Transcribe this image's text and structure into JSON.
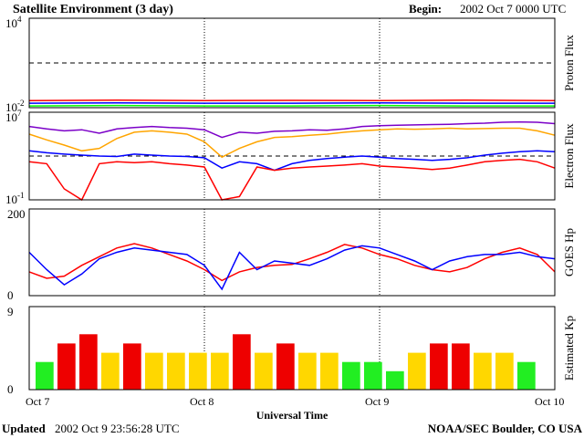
{
  "header": {
    "title": "Satellite Environment (3 day)",
    "begin_label": "Begin:",
    "begin_value": "2002 Oct 7 0000 UTC"
  },
  "footer": {
    "updated_label": "Updated",
    "updated_value": "2002 Oct  9 23:56:28 UTC",
    "credit": "NOAA/SEC Boulder, CO USA"
  },
  "x_axis": {
    "label": "Universal Time",
    "ticks": [
      "Oct 7",
      "Oct 8",
      "Oct 9",
      "Oct 10"
    ],
    "range_days": [
      0,
      3
    ]
  },
  "colors": {
    "red": "#ff0000",
    "blue": "#0000ff",
    "green": "#00ff00",
    "orange": "#ffa500",
    "purple": "#7b00c8",
    "kp_quiet": "#22ee22",
    "kp_active": "#ffd700",
    "kp_storm": "#ee0000"
  },
  "chart_data": [
    {
      "type": "line",
      "panel": "proton",
      "ylabel": "Proton Flux",
      "yscale": "log",
      "ylim": [
        0.01,
        10000
      ],
      "yticks": [
        {
          "base": "10",
          "exp": "4"
        },
        {
          "base": "10",
          "exp": "-2"
        }
      ],
      "threshold": 10,
      "grid": false,
      "series": [
        {
          "color": "red",
          "x": [
            0,
            0.5,
            1,
            1.5,
            2,
            2.5,
            3
          ],
          "values": [
            0.03,
            0.032,
            0.03,
            0.031,
            0.03,
            0.032,
            0.03
          ]
        },
        {
          "color": "blue",
          "x": [
            0,
            0.5,
            1,
            1.5,
            2,
            2.5,
            3
          ],
          "values": [
            0.02,
            0.021,
            0.02,
            0.02,
            0.021,
            0.02,
            0.02
          ]
        },
        {
          "color": "green",
          "x": [
            0,
            0.5,
            1,
            1.5,
            2,
            2.5,
            3
          ],
          "values": [
            0.013,
            0.014,
            0.013,
            0.013,
            0.014,
            0.013,
            0.013
          ]
        }
      ]
    },
    {
      "type": "line",
      "panel": "electron",
      "ylabel": "Electron Flux",
      "yscale": "log",
      "ylim": [
        0.1,
        10000000
      ],
      "yticks": [
        {
          "base": "10",
          "exp": "7"
        },
        {
          "base": "10",
          "exp": "-1"
        }
      ],
      "threshold": 1000,
      "grid": false,
      "series": [
        {
          "color": "purple",
          "x": [
            0,
            0.1,
            0.2,
            0.3,
            0.4,
            0.5,
            0.6,
            0.7,
            0.8,
            0.9,
            1.0,
            1.1,
            1.2,
            1.3,
            1.4,
            1.5,
            1.6,
            1.7,
            1.8,
            1.9,
            2.0,
            2.1,
            2.2,
            2.3,
            2.4,
            2.5,
            2.6,
            2.7,
            2.8,
            2.9,
            3.0
          ],
          "values": [
            500000,
            300000,
            200000,
            250000,
            120000,
            300000,
            400000,
            500000,
            400000,
            350000,
            250000,
            50000,
            150000,
            120000,
            180000,
            200000,
            250000,
            230000,
            300000,
            500000,
            600000,
            650000,
            700000,
            750000,
            800000,
            900000,
            1000000,
            1200000,
            1300000,
            1200000,
            900000
          ]
        },
        {
          "color": "orange",
          "x": [
            0,
            0.1,
            0.2,
            0.3,
            0.4,
            0.5,
            0.6,
            0.7,
            0.8,
            0.9,
            1.0,
            1.1,
            1.2,
            1.3,
            1.4,
            1.5,
            1.6,
            1.7,
            1.8,
            1.9,
            2.0,
            2.1,
            2.2,
            2.3,
            2.4,
            2.5,
            2.6,
            2.7,
            2.8,
            2.9,
            3.0
          ],
          "values": [
            100000,
            30000,
            10000,
            3000,
            5000,
            40000,
            150000,
            200000,
            150000,
            100000,
            20000,
            800,
            5000,
            20000,
            50000,
            60000,
            80000,
            100000,
            150000,
            200000,
            250000,
            300000,
            280000,
            300000,
            350000,
            300000,
            320000,
            350000,
            350000,
            200000,
            80000
          ]
        },
        {
          "color": "blue",
          "x": [
            0,
            0.1,
            0.2,
            0.3,
            0.4,
            0.5,
            0.6,
            0.7,
            0.8,
            0.9,
            1.0,
            1.1,
            1.2,
            1.3,
            1.4,
            1.5,
            1.6,
            1.7,
            1.8,
            1.9,
            2.0,
            2.1,
            2.2,
            2.3,
            2.4,
            2.5,
            2.6,
            2.7,
            2.8,
            2.9,
            3.0
          ],
          "values": [
            3000,
            2000,
            1500,
            1200,
            1000,
            900,
            1500,
            1200,
            1000,
            900,
            700,
            80,
            300,
            200,
            50,
            200,
            400,
            600,
            800,
            1000,
            800,
            600,
            500,
            400,
            500,
            700,
            1200,
            1800,
            2500,
            3000,
            2500
          ]
        },
        {
          "color": "red",
          "x": [
            0,
            0.1,
            0.2,
            0.3,
            0.4,
            0.5,
            0.6,
            0.7,
            0.8,
            0.9,
            1.0,
            1.1,
            1.2,
            1.3,
            1.4,
            1.5,
            1.6,
            1.7,
            1.8,
            1.9,
            2.0,
            2.1,
            2.2,
            2.3,
            2.4,
            2.5,
            2.6,
            2.7,
            2.8,
            2.9,
            3.0
          ],
          "values": [
            300,
            200,
            1,
            0.1,
            200,
            300,
            250,
            300,
            200,
            150,
            100,
            0.1,
            0.2,
            100,
            50,
            80,
            100,
            120,
            150,
            200,
            120,
            100,
            80,
            60,
            80,
            150,
            300,
            400,
            500,
            300,
            80
          ]
        }
      ]
    },
    {
      "type": "line",
      "panel": "hp",
      "ylabel": "GOES Hp",
      "ylim": [
        0,
        200
      ],
      "yticks": [
        "200",
        "0"
      ],
      "grid": false,
      "series": [
        {
          "color": "red",
          "x": [
            0,
            0.1,
            0.2,
            0.3,
            0.4,
            0.5,
            0.6,
            0.7,
            0.8,
            0.9,
            1.0,
            1.1,
            1.2,
            1.3,
            1.4,
            1.5,
            1.6,
            1.7,
            1.8,
            1.9,
            2.0,
            2.1,
            2.2,
            2.3,
            2.4,
            2.5,
            2.6,
            2.7,
            2.8,
            2.9,
            3.0
          ],
          "values": [
            55,
            40,
            45,
            70,
            90,
            110,
            120,
            110,
            95,
            80,
            60,
            35,
            55,
            65,
            70,
            72,
            85,
            100,
            118,
            110,
            95,
            85,
            70,
            60,
            55,
            65,
            85,
            100,
            110,
            95,
            55
          ]
        },
        {
          "color": "blue",
          "x": [
            0,
            0.1,
            0.2,
            0.3,
            0.4,
            0.5,
            0.6,
            0.7,
            0.8,
            0.9,
            1.0,
            1.1,
            1.2,
            1.3,
            1.4,
            1.5,
            1.6,
            1.7,
            1.8,
            1.9,
            2.0,
            2.1,
            2.2,
            2.3,
            2.4,
            2.5,
            2.6,
            2.7,
            2.8,
            2.9,
            3.0
          ],
          "values": [
            100,
            60,
            25,
            50,
            85,
            100,
            110,
            105,
            100,
            95,
            70,
            15,
            100,
            60,
            80,
            75,
            70,
            85,
            105,
            115,
            110,
            95,
            80,
            60,
            80,
            90,
            95,
            95,
            100,
            90,
            85
          ]
        }
      ]
    },
    {
      "type": "bar",
      "panel": "kp",
      "ylabel": "Estimated Kp",
      "ylim": [
        0,
        9
      ],
      "yticks": [
        "9",
        "0"
      ],
      "grid": false,
      "values": [
        3,
        5,
        6,
        4,
        5,
        4,
        4,
        4,
        4,
        6,
        4,
        5,
        4,
        4,
        3,
        3,
        2,
        4,
        5,
        5,
        4,
        4,
        3
      ],
      "levels": [
        "green",
        "red",
        "red",
        "yellow",
        "red",
        "yellow",
        "yellow",
        "yellow",
        "yellow",
        "red",
        "yellow",
        "red",
        "yellow",
        "yellow",
        "green",
        "green",
        "green",
        "yellow",
        "red",
        "red",
        "yellow",
        "yellow",
        "green"
      ]
    }
  ]
}
